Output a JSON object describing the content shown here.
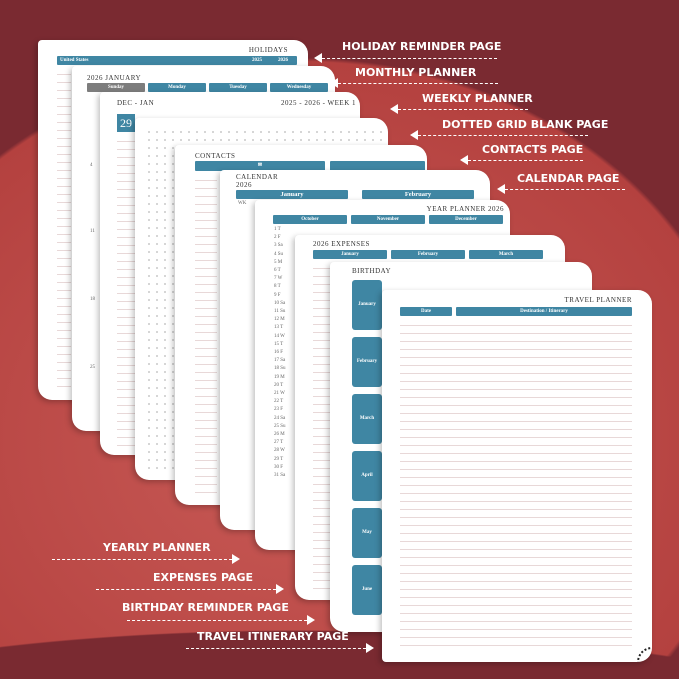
{
  "labels_right": [
    "HOLIDAY REMINDER PAGE",
    "MONTHLY PLANNER",
    "WEEKLY PLANNER",
    "DOTTED GRID BLANK PAGE",
    "CONTACTS PAGE",
    "CALENDAR PAGE"
  ],
  "labels_left": [
    "YEARLY PLANNER",
    "EXPENSES PAGE",
    "BIRTHDAY REMINDER PAGE",
    "TRAVEL ITINERARY PAGE"
  ],
  "holiday": {
    "title": "HOLIDAYS",
    "country": "United States",
    "years": [
      "2025",
      "2026"
    ]
  },
  "monthly": {
    "title": "2026 JANUARY",
    "days": [
      "Sunday",
      "Monday",
      "Tuesday",
      "Wednesday"
    ],
    "dates": [
      "4",
      "11",
      "18",
      "25"
    ]
  },
  "weekly": {
    "title": "DEC - JAN",
    "week": "2025 - 2026 - WEEK 1",
    "dates": [
      "29",
      "30",
      "31",
      "1"
    ]
  },
  "contacts": {
    "title": "CONTACTS"
  },
  "calendar": {
    "title": "CALENDAR",
    "year": "2026",
    "months": [
      "January",
      "February"
    ],
    "wk": "WK"
  },
  "yearly": {
    "title": "YEAR PLANNER 2026",
    "months": [
      "October",
      "November",
      "December"
    ],
    "days": [
      "1 T",
      "2 F",
      "3 Sa",
      "4 Su",
      "5 M",
      "6 T",
      "7 W",
      "8 T",
      "9 F",
      "10 Sa",
      "11 Su",
      "12 M",
      "13 T",
      "14 W",
      "15 T",
      "16 F",
      "17 Sa",
      "18 Su",
      "19 M",
      "20 T",
      "21 W",
      "22 T",
      "23 F",
      "24 Sa",
      "25 Su",
      "26 M",
      "27 T",
      "28 W",
      "29 T",
      "30 F",
      "31 Sa"
    ]
  },
  "expenses": {
    "title": "2026 EXPENSES",
    "months": [
      "January",
      "February",
      "March"
    ]
  },
  "birthday": {
    "title": "BIRTHDAY",
    "months": [
      "January",
      "February",
      "March",
      "April",
      "May",
      "June"
    ]
  },
  "travel": {
    "title": "TRAVEL PLANNER",
    "cols": [
      "Date",
      "Destination / Itinerary"
    ]
  },
  "colors": {
    "accent": "#3f86a3",
    "background": "#7a2a31",
    "circle": "#b9453f"
  }
}
